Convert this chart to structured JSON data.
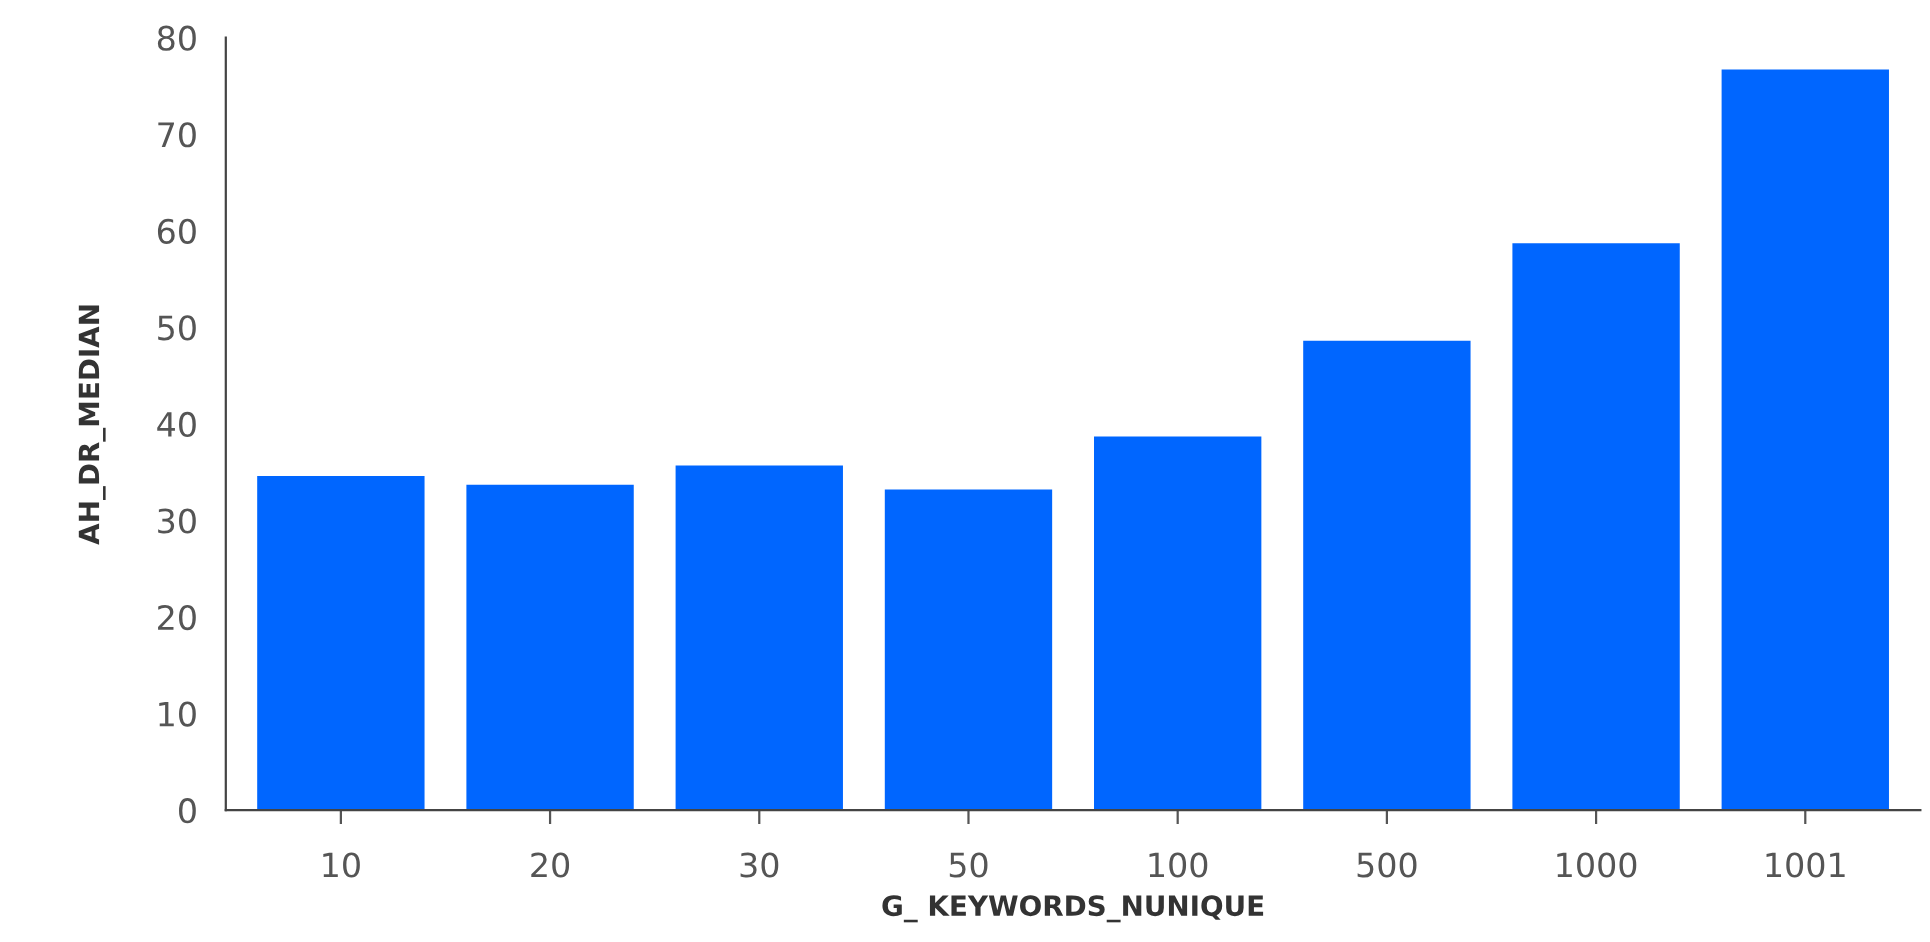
{
  "chart_data": {
    "type": "bar",
    "xlabel": "G_ KEYWORDS_NUNIQUE",
    "ylabel": "AH_DR_MEDIAN",
    "categories": [
      "10",
      "20",
      "30",
      "50",
      "100",
      "500",
      "1000",
      "1001"
    ],
    "values": [
      34.6,
      33.7,
      35.7,
      33.2,
      38.7,
      48.6,
      58.7,
      76.7
    ],
    "color": "#0066ff",
    "ylim": [
      0,
      80
    ],
    "yticks": [
      0,
      10,
      20,
      30,
      40,
      50,
      60,
      70,
      80
    ],
    "grid": false
  }
}
